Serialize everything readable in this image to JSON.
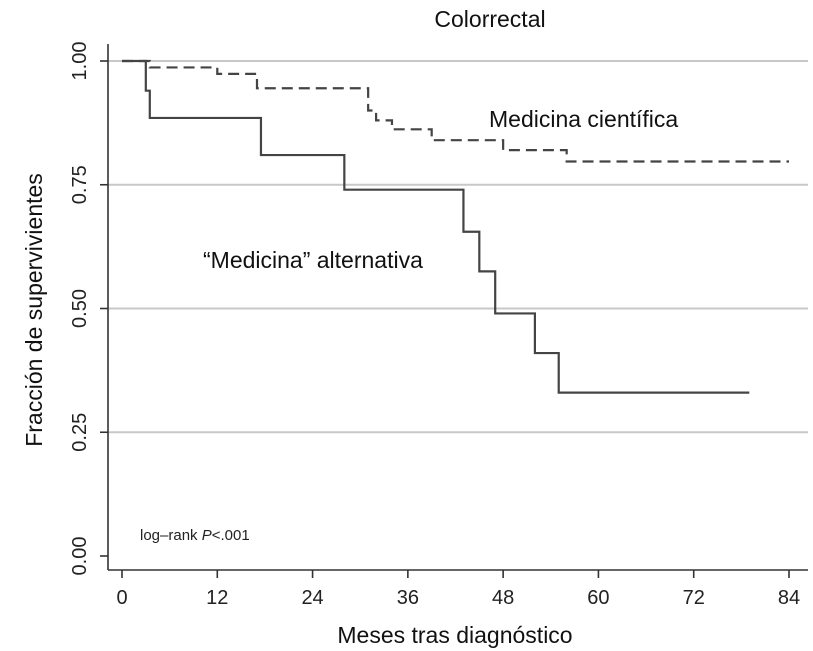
{
  "chart_data": {
    "type": "line",
    "title": "Colorrectal",
    "xlabel": "Meses tras diagnóstico",
    "ylabel": "Fracción de supervivientes",
    "xlim": [
      0,
      84
    ],
    "ylim": [
      0,
      1
    ],
    "xticks": [
      0,
      12,
      24,
      36,
      48,
      60,
      72,
      84
    ],
    "yticks": [
      0,
      0.25,
      0.5,
      0.75,
      1
    ],
    "ytick_labels": [
      "0.00",
      "0.25",
      "0.50",
      "0.75",
      "1.00"
    ],
    "grid": "horizontal",
    "series": [
      {
        "name": "Medicina científica",
        "style": "dashed",
        "x": [
          0,
          3.5,
          12,
          17,
          31,
          32,
          34,
          39,
          48,
          56,
          84
        ],
        "y": [
          1.0,
          0.987,
          0.974,
          0.945,
          0.9,
          0.88,
          0.862,
          0.84,
          0.82,
          0.797,
          0.797
        ]
      },
      {
        "name": "“Medicina” alternativa",
        "style": "solid",
        "x": [
          0,
          3,
          3.5,
          17.5,
          28,
          43,
          45,
          47,
          52,
          55,
          79
        ],
        "y": [
          1.0,
          0.94,
          0.885,
          0.81,
          0.74,
          0.655,
          0.575,
          0.49,
          0.41,
          0.33,
          0.33
        ]
      }
    ],
    "annotation": {
      "text_prefix": "log–rank ",
      "text_italic": "P",
      "text_suffix": "<.001"
    },
    "colors": {
      "line": "#444444",
      "grid": "#c8c8c8",
      "axis": "#333333"
    }
  }
}
